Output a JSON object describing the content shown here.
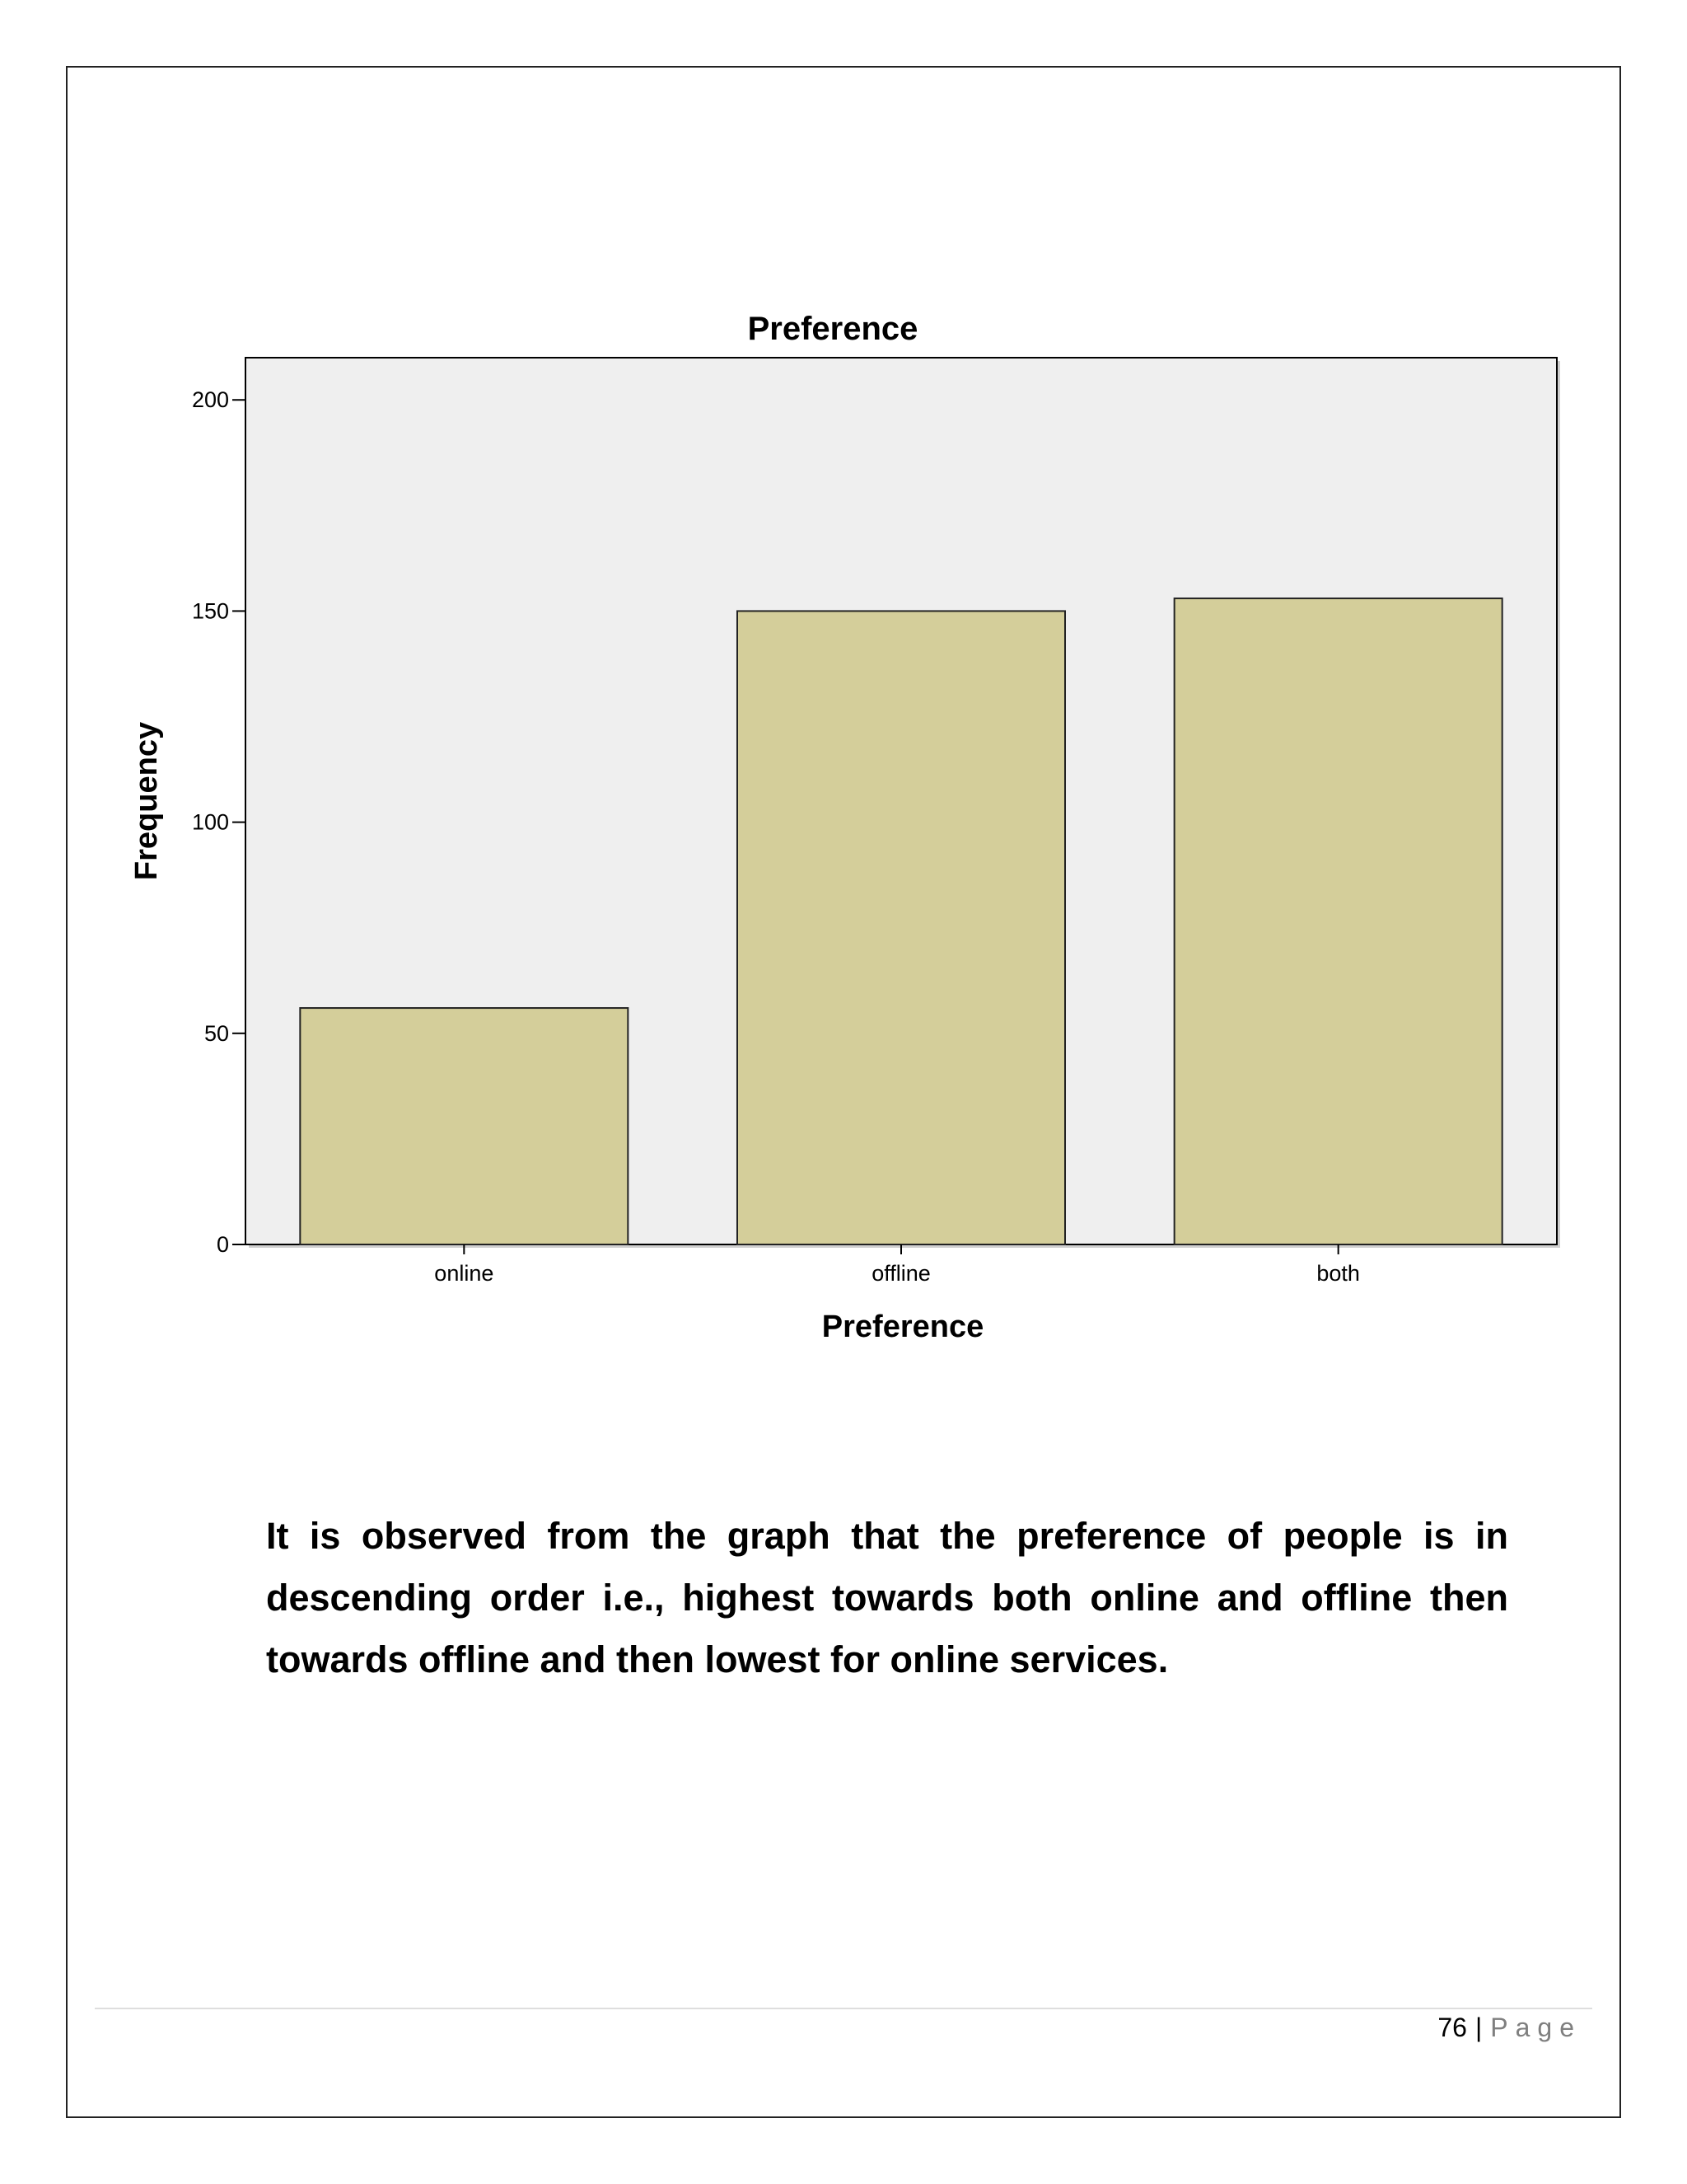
{
  "chart_data": {
    "type": "bar",
    "title": "Preference",
    "xlabel": "Preference",
    "ylabel": "Frequency",
    "categories": [
      "online",
      "offline",
      "both"
    ],
    "values": [
      56,
      150,
      153
    ],
    "ylim": [
      0,
      210
    ],
    "yticks": [
      0,
      50,
      100,
      150,
      200
    ],
    "grid": false,
    "legend": "none",
    "colors": {
      "bar_fill": "#d4ce9a",
      "bar_stroke": "#222222",
      "plot_background": "#efefef",
      "axis": "#000000"
    }
  },
  "observation_text": "It is observed from the graph that the preference of people is in descending order i.e., highest towards both online and offline then towards offline and then lowest for online services.",
  "footer": {
    "page_number": "76",
    "separator": "|",
    "page_word": "Page"
  }
}
